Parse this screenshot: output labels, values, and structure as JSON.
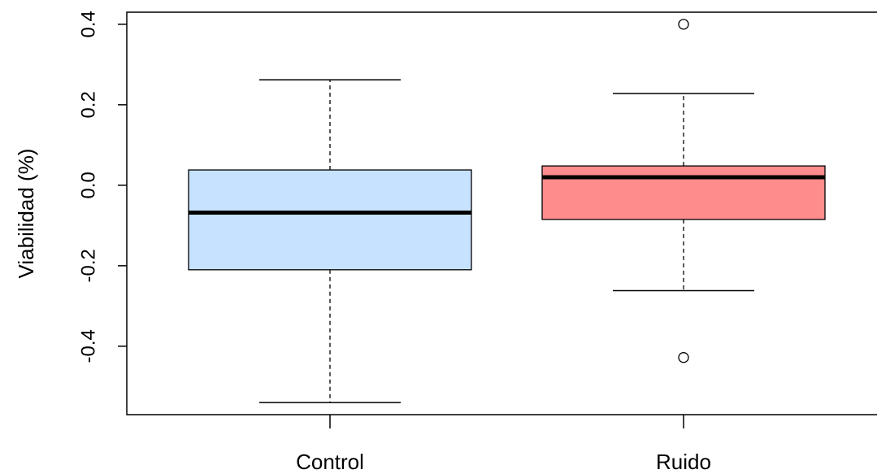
{
  "chart_data": {
    "type": "boxplot",
    "title": "",
    "xlabel": "",
    "ylabel": "Viabilidad (%)",
    "ylim": [
      -0.57,
      0.43
    ],
    "yticks": [
      -0.4,
      -0.2,
      0.0,
      0.2,
      0.4
    ],
    "ytick_labels": [
      "-0.4",
      "-0.2",
      "0.0",
      "0.2",
      "0.4"
    ],
    "grid": false,
    "categories": [
      "Control",
      "Ruido"
    ],
    "boxes": [
      {
        "category": "Control",
        "whisker_low": -0.54,
        "q1": -0.21,
        "median": -0.068,
        "q3": 0.038,
        "whisker_high": 0.262,
        "outliers": [],
        "fill": "#c6e2ff"
      },
      {
        "category": "Ruido",
        "whisker_low": -0.262,
        "q1": -0.085,
        "median": 0.02,
        "q3": 0.048,
        "whisker_high": 0.228,
        "outliers": [
          0.4,
          -0.428
        ],
        "fill": "#ff8c8c"
      }
    ]
  }
}
